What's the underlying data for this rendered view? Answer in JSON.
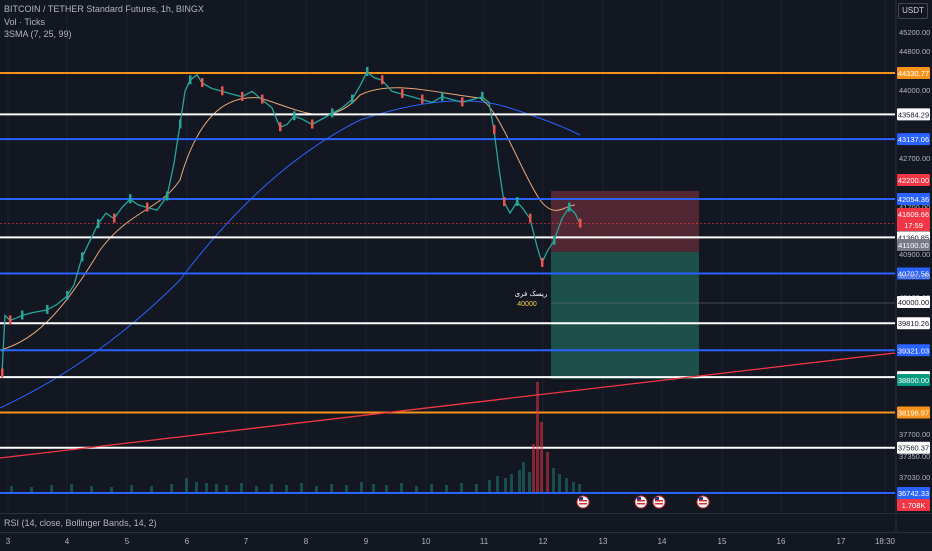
{
  "legend": {
    "title": "BITCOIN / TETHER Standard Futures, 1h, BINGX",
    "volume": "Vol · Ticks",
    "sma": "3SMA (7, 25, 99)"
  },
  "currency": "USDT",
  "rsi_label": "RSI (14, close, Bollinger Bands, 14, 2)",
  "annotation": {
    "text": "ریسک فری",
    "price": "40000"
  },
  "colors": {
    "orange": "#f7931a",
    "white": "#ffffff",
    "blue": "#2962ff",
    "red_trend": "#f23645",
    "green_zone": "#1e5b4f",
    "red_zone": "#5c2a35",
    "sma_fast": "#e8a878",
    "sma_slow": "#2962ff",
    "price_label": "#f23645"
  },
  "chart_data": {
    "type": "candlestick",
    "y_axis_ticks": [
      "45200.00",
      "44800.00",
      "44000.00",
      "42700.00",
      "41700.00",
      "40900.00",
      "40500.00",
      "40100.00",
      "38500.00",
      "37700.00",
      "37350.00",
      "37030.00"
    ],
    "x_axis_ticks": [
      "3",
      "4",
      "5",
      "6",
      "7",
      "8",
      "9",
      "10",
      "11",
      "12",
      "13",
      "14",
      "15",
      "16",
      "17",
      "18:30"
    ],
    "horizontal_levels": [
      {
        "price": 45900,
        "color": "orange",
        "label": ""
      },
      {
        "price": 44330.77,
        "color": "orange",
        "label": "44330.77"
      },
      {
        "price": 43584.29,
        "color": "white",
        "label": "43584.29"
      },
      {
        "price": 43137.06,
        "color": "blue",
        "label": "43137.06"
      },
      {
        "price": 42054.36,
        "color": "blue",
        "label": "42054.36"
      },
      {
        "price": 41360.85,
        "color": "white",
        "label": "41360.85"
      },
      {
        "price": 40707.56,
        "color": "blue",
        "label": "40707.56"
      },
      {
        "price": 39810.26,
        "color": "white",
        "label": "39810.26"
      },
      {
        "price": 39321.03,
        "color": "blue",
        "label": "39321.03"
      },
      {
        "price": 38836.43,
        "color": "white",
        "label": "38836.43"
      },
      {
        "price": 38196.97,
        "color": "orange",
        "label": "38196.97"
      },
      {
        "price": 37560.37,
        "color": "white",
        "label": "37560.37"
      },
      {
        "price": 36742.33,
        "color": "blue",
        "label": "36742.33"
      }
    ],
    "price_badges": [
      {
        "label": "42200.00",
        "bg": "#f23645"
      },
      {
        "label": "41609.66",
        "bg": "#f23645"
      },
      {
        "label": "17:59",
        "bg": "#f23645"
      },
      {
        "label": "41100.00",
        "bg": "#787b86"
      },
      {
        "label": "40000.00",
        "bg": "#ffffff"
      },
      {
        "label": "38800.00",
        "bg": "#089981"
      },
      {
        "label": "1.708K",
        "bg": "#f23645"
      }
    ],
    "position": {
      "entry": 41100,
      "stop": 42200,
      "target": 38800,
      "type": "short"
    },
    "trendline": {
      "from_day": "3",
      "from_price": 37300,
      "to_day": "18:30",
      "to_price": 39050
    },
    "last_price": 41609.66,
    "ohlc_path": [
      [
        0,
        38900
      ],
      [
        3,
        39950
      ],
      [
        8,
        39860
      ],
      [
        14,
        39900
      ],
      [
        20,
        39950
      ],
      [
        30,
        40000
      ],
      [
        45,
        40050
      ],
      [
        55,
        40150
      ],
      [
        65,
        40300
      ],
      [
        72,
        40500
      ],
      [
        80,
        41000
      ],
      [
        88,
        41300
      ],
      [
        96,
        41600
      ],
      [
        104,
        41800
      ],
      [
        112,
        41700
      ],
      [
        120,
        41900
      ],
      [
        128,
        42050
      ],
      [
        136,
        41950
      ],
      [
        145,
        41900
      ],
      [
        155,
        41850
      ],
      [
        165,
        42100
      ],
      [
        172,
        42700
      ],
      [
        178,
        43400
      ],
      [
        183,
        44000
      ],
      [
        188,
        44200
      ],
      [
        195,
        44300
      ],
      [
        200,
        44150
      ],
      [
        210,
        44050
      ],
      [
        220,
        44000
      ],
      [
        230,
        43950
      ],
      [
        240,
        43900
      ],
      [
        250,
        44000
      ],
      [
        260,
        43850
      ],
      [
        270,
        43700
      ],
      [
        278,
        43350
      ],
      [
        285,
        43400
      ],
      [
        292,
        43550
      ],
      [
        300,
        43500
      ],
      [
        310,
        43400
      ],
      [
        320,
        43500
      ],
      [
        330,
        43600
      ],
      [
        340,
        43700
      ],
      [
        350,
        43850
      ],
      [
        358,
        44100
      ],
      [
        365,
        44350
      ],
      [
        372,
        44250
      ],
      [
        380,
        44200
      ],
      [
        390,
        44000
      ],
      [
        400,
        43950
      ],
      [
        410,
        43900
      ],
      [
        420,
        43850
      ],
      [
        430,
        43800
      ],
      [
        440,
        43900
      ],
      [
        450,
        43850
      ],
      [
        460,
        43800
      ],
      [
        470,
        43850
      ],
      [
        480,
        43900
      ],
      [
        487,
        43800
      ],
      [
        492,
        43300
      ],
      [
        497,
        42600
      ],
      [
        502,
        42000
      ],
      [
        508,
        41800
      ],
      [
        515,
        42000
      ],
      [
        520,
        41900
      ],
      [
        528,
        41700
      ],
      [
        535,
        41200
      ],
      [
        540,
        40900
      ],
      [
        545,
        41100
      ],
      [
        552,
        41300
      ],
      [
        560,
        41700
      ],
      [
        567,
        41900
      ],
      [
        573,
        41800
      ],
      [
        578,
        41610
      ]
    ],
    "volume_bars": [
      [
        10,
        6
      ],
      [
        30,
        5
      ],
      [
        50,
        7
      ],
      [
        70,
        8
      ],
      [
        90,
        6
      ],
      [
        110,
        5
      ],
      [
        130,
        7
      ],
      [
        150,
        6
      ],
      [
        170,
        8
      ],
      [
        185,
        14
      ],
      [
        195,
        10
      ],
      [
        205,
        9
      ],
      [
        215,
        8
      ],
      [
        225,
        7
      ],
      [
        240,
        9
      ],
      [
        255,
        6
      ],
      [
        270,
        8
      ],
      [
        285,
        7
      ],
      [
        300,
        9
      ],
      [
        315,
        6
      ],
      [
        330,
        8
      ],
      [
        345,
        7
      ],
      [
        360,
        10
      ],
      [
        372,
        8
      ],
      [
        385,
        7
      ],
      [
        400,
        9
      ],
      [
        415,
        6
      ],
      [
        430,
        8
      ],
      [
        445,
        7
      ],
      [
        460,
        9
      ],
      [
        475,
        8
      ],
      [
        488,
        12
      ],
      [
        496,
        16
      ],
      [
        504,
        14
      ],
      [
        510,
        18
      ],
      [
        518,
        22
      ],
      [
        522,
        30
      ],
      [
        528,
        20
      ],
      [
        532,
        48
      ],
      [
        536,
        110
      ],
      [
        540,
        70
      ],
      [
        546,
        40
      ],
      [
        552,
        24
      ],
      [
        558,
        18
      ],
      [
        565,
        14
      ],
      [
        572,
        10
      ],
      [
        578,
        8
      ]
    ]
  }
}
